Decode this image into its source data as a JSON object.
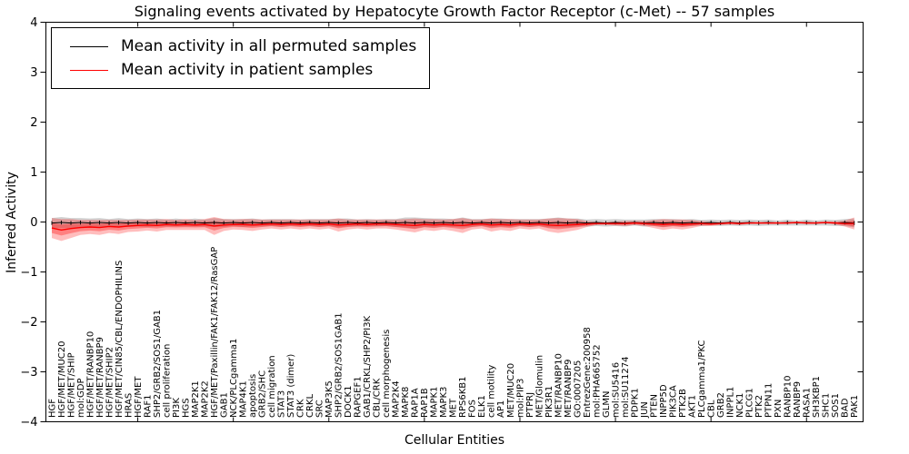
{
  "chart_data": {
    "type": "line",
    "title": "Signaling events activated by Hepatocyte Growth Factor Receptor (c-Met) -- 57 samples",
    "xlabel": "Cellular Entities",
    "ylabel": "Inferred Activity",
    "ylim": [
      -4,
      4
    ],
    "yticks": [
      "4",
      "3",
      "2",
      "1",
      "0",
      "−1",
      "−2",
      "−3",
      "−4"
    ],
    "grid": false,
    "legend_position": "upper left",
    "legend": [
      {
        "label": "Mean activity in all permuted samples",
        "color": "#000000"
      },
      {
        "label": "Mean activity in patient samples",
        "color": "#ff0000"
      }
    ],
    "band_colors": {
      "permuted_band": "#999999",
      "patient_band": "#ff0000"
    },
    "categories": [
      "HGF",
      "HGF/MET/MUC20",
      "HGF/MET/SHIP",
      "mol:GDP",
      "HGF/MET/RANBP10",
      "HGF/MET/RANBP9",
      "HGF/MET/SHIP2",
      "HGF/MET/CIN85/CBL/ENDOPHILINS",
      "HRAS",
      "HGF/MET",
      "RAF1",
      "SHP2/GRB2/SOS1/GAB1",
      "cell proliferation",
      "PI3K",
      "HGS",
      "MAP2K1",
      "MAP2K2",
      "HGF/MET/Paxillin/FAK1/FAK12/RasGAP",
      "GAB1",
      "NCK/PLCgamma1",
      "MAP4K1",
      "apoptosis",
      "GRB2/SHC",
      "cell migration",
      "STAT3",
      "STAT3 (dimer)",
      "CRK",
      "CRKL",
      "SRC",
      "MAP3K5",
      "SHP2/GRB2/SOS1GAB1",
      "DOCK1",
      "RAPGEF1",
      "GAB1/CRKL/SHP2/PI3K",
      "CBL/CRK",
      "cell morphogenesis",
      "MAP2K4",
      "MAPK8",
      "RAP1A",
      "RAP1B",
      "MAPK1",
      "MAPK3",
      "MET",
      "RPS6KB1",
      "FOS",
      "ELK1",
      "cell motility",
      "AP1",
      "MET/MUC20",
      "mol:PIP3",
      "PTPRJ",
      "MET/Glomulin",
      "PIK3R1",
      "MET/RANBP10",
      "MET/RANBP9",
      "GO:0007205",
      "EntrezGene:200958",
      "mol:PHA665752",
      "GLMN",
      "mol:SU5416",
      "mol:SU11274",
      "PDPK1",
      "JUN",
      "PTEN",
      "INPP5D",
      "PIK3CA",
      "PTK2B",
      "AKT1",
      "PLCgamma1/PKC",
      "CBL",
      "GRB2",
      "INPPL1",
      "NCK1",
      "PLCG1",
      "PTK2",
      "PTPN11",
      "PXN",
      "RANBP10",
      "RANBP9",
      "RASA1",
      "SH3KBP1",
      "SHC1",
      "SOS1",
      "BAD",
      "PAK1"
    ],
    "series": [
      {
        "name": "Mean activity in all permuted samples",
        "color": "#000000",
        "values": [
          -0.02,
          -0.01,
          -0.02,
          -0.01,
          -0.02,
          -0.01,
          -0.02,
          -0.01,
          -0.02,
          -0.01,
          -0.02,
          -0.01,
          -0.02,
          -0.01,
          -0.02,
          -0.01,
          -0.02,
          -0.01,
          -0.02,
          -0.01,
          -0.02,
          -0.01,
          -0.02,
          -0.01,
          -0.02,
          -0.01,
          -0.02,
          -0.01,
          -0.02,
          -0.01,
          -0.02,
          -0.01,
          -0.02,
          -0.01,
          -0.02,
          -0.01,
          -0.02,
          -0.01,
          -0.02,
          -0.01,
          -0.02,
          -0.01,
          -0.02,
          -0.01,
          -0.02,
          -0.01,
          -0.02,
          -0.01,
          -0.02,
          -0.01,
          -0.02,
          -0.01,
          -0.02,
          -0.01,
          -0.02,
          -0.01,
          -0.02,
          -0.01,
          -0.02,
          -0.01,
          -0.02,
          -0.01,
          -0.02,
          -0.01,
          -0.02,
          -0.01,
          -0.02,
          -0.01,
          -0.02,
          -0.01,
          -0.02,
          -0.01,
          -0.02,
          -0.01,
          -0.02,
          -0.01,
          -0.02,
          -0.01,
          -0.02,
          -0.01,
          -0.02,
          -0.01,
          -0.02,
          -0.01,
          -0.02
        ],
        "band_halfwidth": [
          0.1,
          0.11,
          0.1,
          0.09,
          0.09,
          0.09,
          0.08,
          0.09,
          0.08,
          0.08,
          0.08,
          0.08,
          0.07,
          0.08,
          0.07,
          0.08,
          0.07,
          0.09,
          0.08,
          0.07,
          0.08,
          0.08,
          0.07,
          0.07,
          0.08,
          0.07,
          0.07,
          0.07,
          0.08,
          0.07,
          0.09,
          0.08,
          0.07,
          0.07,
          0.07,
          0.07,
          0.08,
          0.1,
          0.11,
          0.09,
          0.09,
          0.08,
          0.08,
          0.1,
          0.08,
          0.07,
          0.09,
          0.08,
          0.08,
          0.07,
          0.08,
          0.07,
          0.09,
          0.1,
          0.09,
          0.08,
          0.07,
          0.07,
          0.07,
          0.07,
          0.07,
          0.06,
          0.07,
          0.07,
          0.08,
          0.07,
          0.07,
          0.07,
          0.06,
          0.06,
          0.06,
          0.06,
          0.06,
          0.06,
          0.06,
          0.06,
          0.05,
          0.06,
          0.05,
          0.06,
          0.05,
          0.06,
          0.06,
          0.07,
          0.09
        ]
      },
      {
        "name": "Mean activity in patient samples",
        "color": "#ff0000",
        "values": [
          -0.12,
          -0.16,
          -0.13,
          -0.11,
          -0.1,
          -0.11,
          -0.09,
          -0.1,
          -0.08,
          -0.07,
          -0.06,
          -0.07,
          -0.05,
          -0.06,
          -0.05,
          -0.06,
          -0.05,
          -0.08,
          -0.06,
          -0.05,
          -0.05,
          -0.06,
          -0.05,
          -0.04,
          -0.05,
          -0.04,
          -0.05,
          -0.04,
          -0.05,
          -0.04,
          -0.06,
          -0.05,
          -0.04,
          -0.05,
          -0.04,
          -0.04,
          -0.05,
          -0.06,
          -0.07,
          -0.05,
          -0.06,
          -0.05,
          -0.06,
          -0.07,
          -0.05,
          -0.04,
          -0.06,
          -0.05,
          -0.06,
          -0.04,
          -0.05,
          -0.04,
          -0.06,
          -0.07,
          -0.06,
          -0.05,
          -0.04,
          -0.03,
          -0.03,
          -0.03,
          -0.03,
          -0.02,
          -0.03,
          -0.04,
          -0.05,
          -0.04,
          -0.05,
          -0.04,
          -0.03,
          -0.04,
          -0.03,
          -0.02,
          -0.03,
          -0.02,
          -0.02,
          -0.02,
          -0.02,
          -0.02,
          -0.01,
          -0.02,
          -0.02,
          -0.01,
          -0.02,
          -0.03,
          -0.03
        ],
        "band_halfwidth": [
          0.2,
          0.22,
          0.19,
          0.15,
          0.14,
          0.15,
          0.13,
          0.14,
          0.12,
          0.12,
          0.11,
          0.12,
          0.11,
          0.1,
          0.11,
          0.1,
          0.11,
          0.18,
          0.12,
          0.1,
          0.11,
          0.12,
          0.1,
          0.09,
          0.1,
          0.09,
          0.1,
          0.09,
          0.1,
          0.09,
          0.13,
          0.1,
          0.09,
          0.1,
          0.09,
          0.09,
          0.1,
          0.12,
          0.14,
          0.11,
          0.12,
          0.1,
          0.12,
          0.15,
          0.1,
          0.09,
          0.13,
          0.11,
          0.12,
          0.09,
          0.1,
          0.09,
          0.13,
          0.15,
          0.13,
          0.11,
          0.06,
          0.03,
          0.03,
          0.04,
          0.05,
          0.04,
          0.05,
          0.08,
          0.11,
          0.09,
          0.1,
          0.08,
          0.05,
          0.04,
          0.03,
          0.03,
          0.03,
          0.02,
          0.02,
          0.02,
          0.02,
          0.02,
          0.02,
          0.02,
          0.02,
          0.02,
          0.03,
          0.06,
          0.12
        ]
      }
    ]
  }
}
